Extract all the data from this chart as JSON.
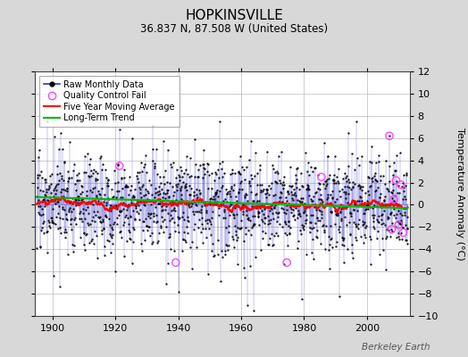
{
  "title": "HOPKINSVILLE",
  "subtitle": "36.837 N, 87.508 W (United States)",
  "ylabel": "Temperature Anomaly (°C)",
  "watermark": "Berkeley Earth",
  "year_start": 1895,
  "year_end": 2012,
  "ylim": [
    -10,
    12
  ],
  "yticks": [
    -10,
    -8,
    -6,
    -4,
    -2,
    0,
    2,
    4,
    6,
    8,
    10,
    12
  ],
  "xticks": [
    1900,
    1920,
    1940,
    1960,
    1980,
    2000
  ],
  "bg_color": "#d8d8d8",
  "plot_bg": "#ffffff",
  "raw_color": "#3333cc",
  "raw_dot_color": "#000000",
  "qc_color": "#ff44ff",
  "moving_avg_color": "#ff0000",
  "trend_color": "#00bb00",
  "grid_color": "#bbbbbb",
  "title_fontsize": 11,
  "subtitle_fontsize": 8.5,
  "label_fontsize": 8,
  "tick_fontsize": 8,
  "seed": 17,
  "noise_std": 2.2,
  "qc_x": [
    1921.3,
    1939.2,
    1974.5,
    1985.5,
    2007.1,
    2007.8,
    2008.5,
    2009.2,
    2010.0,
    2010.8,
    2011.5
  ],
  "qc_y": [
    3.5,
    -5.2,
    -5.2,
    2.5,
    6.2,
    -2.2,
    0.5,
    2.2,
    -1.8,
    1.8,
    -2.5
  ]
}
